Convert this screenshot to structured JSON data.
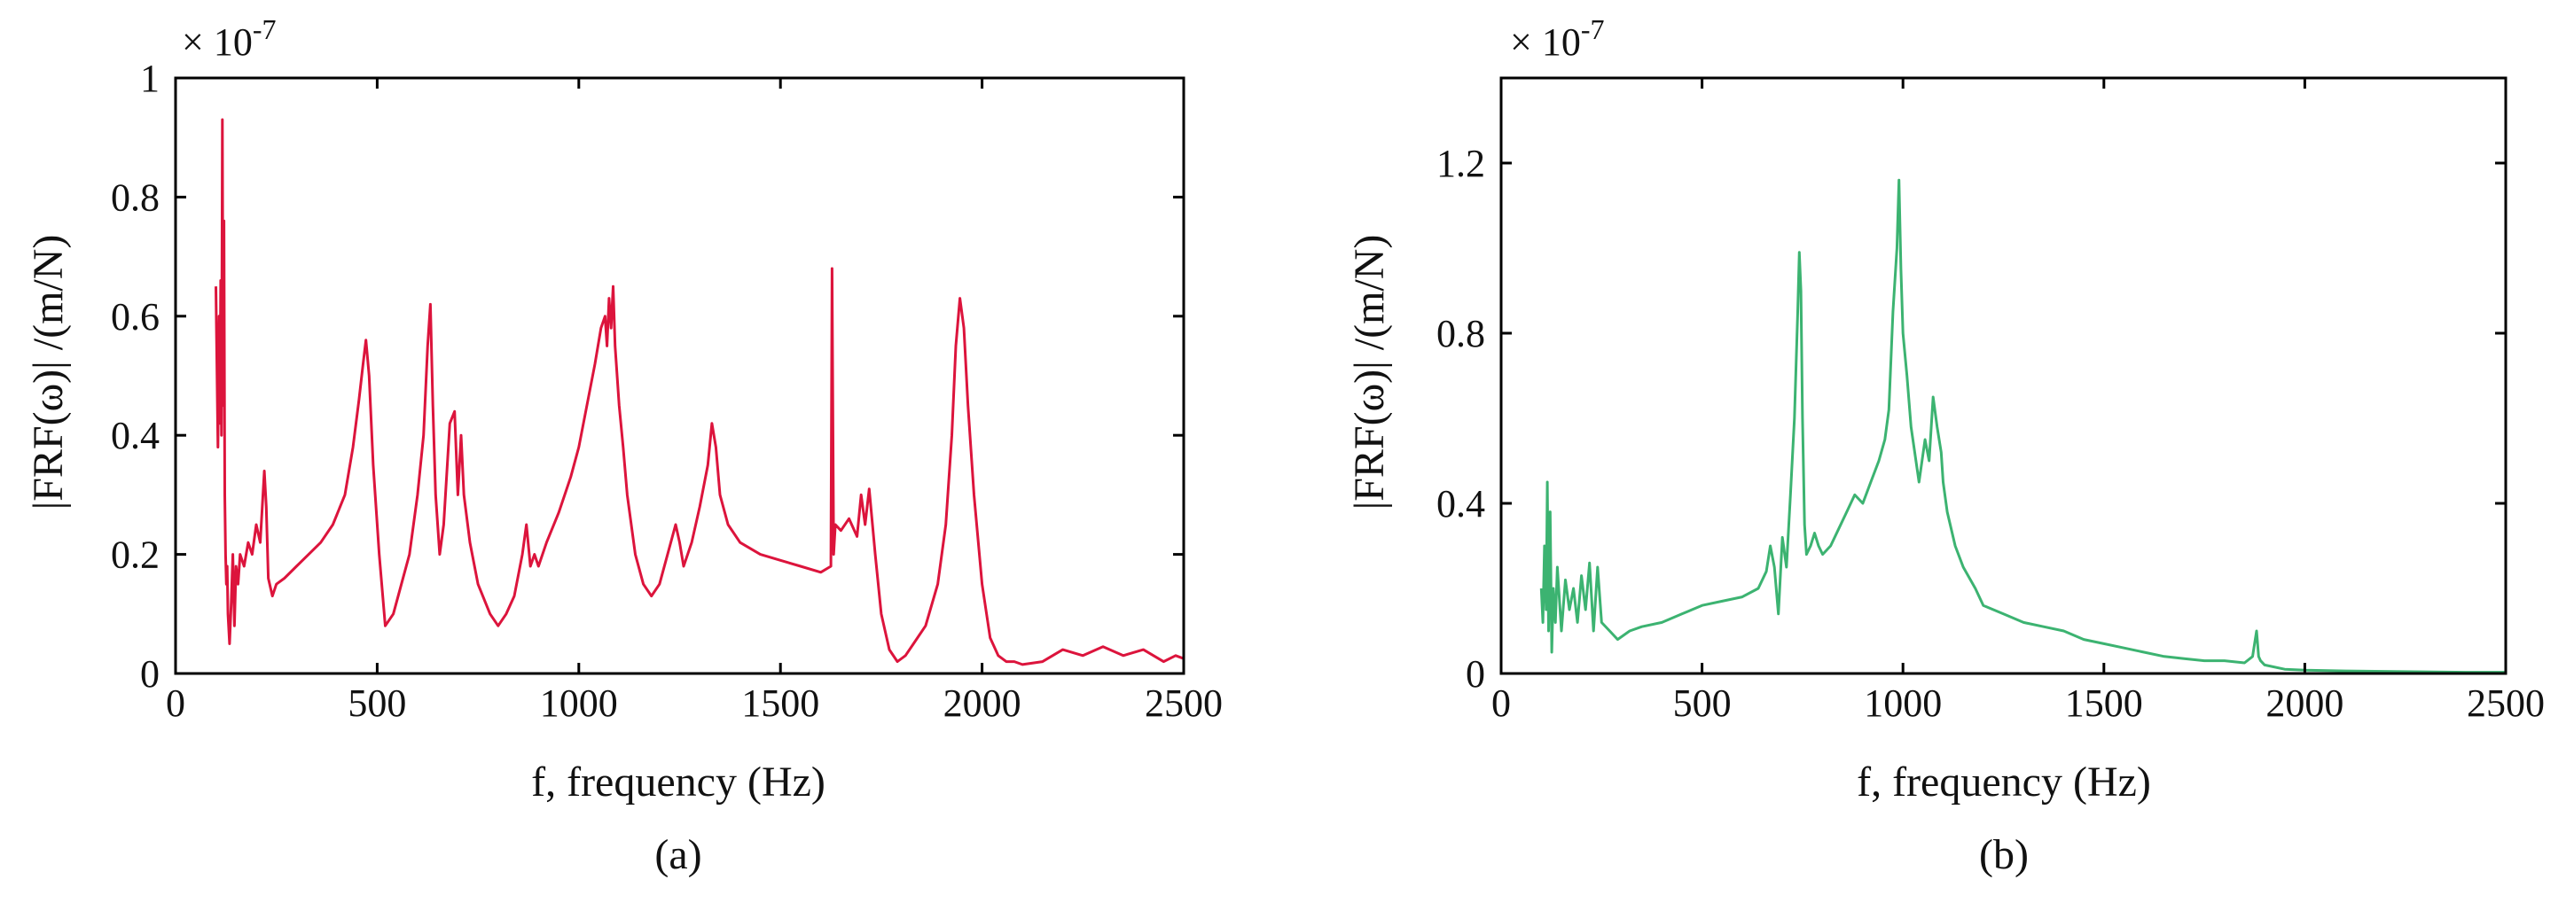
{
  "chart_data": [
    {
      "type": "line",
      "caption": "(a)",
      "xlabel": "f, frequency (Hz)",
      "ylabel": "|FRF(ω)| /(m/N)",
      "multiplier": "× 10",
      "multiplier_exp": "-7",
      "xlim": [
        0,
        2500
      ],
      "ylim": [
        0,
        1
      ],
      "xticks": [
        0,
        500,
        1000,
        1500,
        2000,
        2500
      ],
      "yticks": [
        0,
        0.2,
        0.4,
        0.6,
        0.8,
        1
      ],
      "ytick_labels": [
        "0",
        "0.2",
        "0.4",
        "0.6",
        "0.8",
        "1"
      ],
      "color": "#dc143c",
      "series": [
        {
          "x": [
            100,
            105,
            108,
            110,
            112,
            114,
            116,
            118,
            120,
            122,
            124,
            126,
            128,
            130,
            134,
            138,
            142,
            146,
            150,
            155,
            160,
            170,
            180,
            190,
            200,
            210,
            220,
            225,
            230,
            240,
            250,
            270,
            300,
            330,
            360,
            390,
            420,
            440,
            455,
            465,
            472,
            480,
            490,
            505,
            520,
            540,
            560,
            580,
            600,
            615,
            625,
            632,
            638,
            645,
            655,
            665,
            680,
            692,
            700,
            708,
            715,
            730,
            750,
            780,
            800,
            820,
            840,
            860,
            870,
            880,
            890,
            900,
            920,
            950,
            980,
            1000,
            1020,
            1040,
            1055,
            1065,
            1070,
            1075,
            1080,
            1085,
            1090,
            1100,
            1110,
            1120,
            1140,
            1160,
            1180,
            1200,
            1220,
            1240,
            1250,
            1260,
            1280,
            1300,
            1320,
            1330,
            1340,
            1350,
            1370,
            1400,
            1450,
            1500,
            1550,
            1600,
            1625,
            1628,
            1632,
            1636,
            1650,
            1670,
            1690,
            1700,
            1710,
            1720,
            1735,
            1750,
            1770,
            1790,
            1810,
            1830,
            1860,
            1890,
            1910,
            1925,
            1935,
            1945,
            1955,
            1965,
            1980,
            2000,
            2020,
            2040,
            2060,
            2080,
            2100,
            2150,
            2200,
            2250,
            2300,
            2350,
            2400,
            2450,
            2480,
            2500
          ],
          "values": [
            0.65,
            0.38,
            0.6,
            0.42,
            0.66,
            0.4,
            0.93,
            0.45,
            0.76,
            0.3,
            0.2,
            0.15,
            0.18,
            0.1,
            0.05,
            0.12,
            0.2,
            0.08,
            0.18,
            0.15,
            0.2,
            0.18,
            0.22,
            0.2,
            0.25,
            0.22,
            0.34,
            0.28,
            0.16,
            0.13,
            0.15,
            0.16,
            0.18,
            0.2,
            0.22,
            0.25,
            0.3,
            0.38,
            0.46,
            0.52,
            0.56,
            0.5,
            0.35,
            0.2,
            0.08,
            0.1,
            0.15,
            0.2,
            0.3,
            0.4,
            0.55,
            0.62,
            0.45,
            0.3,
            0.2,
            0.25,
            0.42,
            0.44,
            0.3,
            0.4,
            0.3,
            0.22,
            0.15,
            0.1,
            0.08,
            0.1,
            0.13,
            0.2,
            0.25,
            0.18,
            0.2,
            0.18,
            0.22,
            0.27,
            0.33,
            0.38,
            0.45,
            0.52,
            0.58,
            0.6,
            0.55,
            0.63,
            0.58,
            0.65,
            0.55,
            0.45,
            0.38,
            0.3,
            0.2,
            0.15,
            0.13,
            0.15,
            0.2,
            0.25,
            0.22,
            0.18,
            0.22,
            0.28,
            0.35,
            0.42,
            0.38,
            0.3,
            0.25,
            0.22,
            0.2,
            0.19,
            0.18,
            0.17,
            0.18,
            0.68,
            0.2,
            0.25,
            0.24,
            0.26,
            0.23,
            0.3,
            0.25,
            0.31,
            0.2,
            0.1,
            0.04,
            0.02,
            0.03,
            0.05,
            0.08,
            0.15,
            0.25,
            0.4,
            0.55,
            0.63,
            0.58,
            0.45,
            0.3,
            0.15,
            0.06,
            0.03,
            0.02,
            0.02,
            0.015,
            0.02,
            0.04,
            0.03,
            0.045,
            0.03,
            0.04,
            0.02,
            0.03,
            0.025
          ]
        }
      ]
    },
    {
      "type": "line",
      "caption": "(b)",
      "xlabel": "f, frequency (Hz)",
      "ylabel": "|FRF(ω)| /(m/N)",
      "multiplier": "× 10",
      "multiplier_exp": "-7",
      "xlim": [
        0,
        2500
      ],
      "ylim": [
        0,
        1.4
      ],
      "xticks": [
        0,
        500,
        1000,
        1500,
        2000,
        2500
      ],
      "yticks": [
        0,
        0.4,
        0.8,
        1.2
      ],
      "ytick_labels": [
        "0",
        "0.4",
        "0.8",
        "1.2"
      ],
      "color": "#3cb371",
      "series": [
        {
          "x": [
            100,
            104,
            108,
            112,
            115,
            118,
            122,
            126,
            130,
            135,
            140,
            150,
            160,
            170,
            180,
            190,
            200,
            210,
            220,
            230,
            240,
            250,
            270,
            290,
            320,
            350,
            400,
            450,
            500,
            550,
            600,
            640,
            660,
            670,
            680,
            690,
            700,
            710,
            720,
            730,
            738,
            742,
            746,
            750,
            755,
            760,
            770,
            780,
            790,
            800,
            820,
            840,
            860,
            880,
            900,
            920,
            940,
            955,
            965,
            975,
            985,
            990,
            995,
            1000,
            1010,
            1020,
            1040,
            1055,
            1065,
            1075,
            1085,
            1095,
            1100,
            1110,
            1130,
            1150,
            1180,
            1200,
            1250,
            1300,
            1350,
            1400,
            1450,
            1500,
            1550,
            1600,
            1650,
            1700,
            1750,
            1800,
            1850,
            1870,
            1880,
            1885,
            1890,
            1900,
            1950,
            2000,
            2100,
            2200,
            2300,
            2400,
            2500
          ],
          "values": [
            0.2,
            0.12,
            0.3,
            0.15,
            0.45,
            0.1,
            0.38,
            0.05,
            0.2,
            0.12,
            0.25,
            0.1,
            0.22,
            0.15,
            0.2,
            0.12,
            0.23,
            0.15,
            0.26,
            0.1,
            0.25,
            0.12,
            0.1,
            0.08,
            0.1,
            0.11,
            0.12,
            0.14,
            0.16,
            0.17,
            0.18,
            0.2,
            0.24,
            0.3,
            0.25,
            0.14,
            0.32,
            0.25,
            0.42,
            0.6,
            0.85,
            0.99,
            0.9,
            0.6,
            0.35,
            0.28,
            0.3,
            0.33,
            0.3,
            0.28,
            0.3,
            0.34,
            0.38,
            0.42,
            0.4,
            0.45,
            0.5,
            0.55,
            0.62,
            0.85,
            1.0,
            1.16,
            0.95,
            0.8,
            0.7,
            0.58,
            0.45,
            0.55,
            0.5,
            0.65,
            0.58,
            0.52,
            0.45,
            0.38,
            0.3,
            0.25,
            0.2,
            0.16,
            0.14,
            0.12,
            0.11,
            0.1,
            0.08,
            0.07,
            0.06,
            0.05,
            0.04,
            0.035,
            0.03,
            0.03,
            0.025,
            0.04,
            0.1,
            0.04,
            0.03,
            0.02,
            0.01,
            0.008,
            0.006,
            0.005,
            0.004,
            0.003,
            0.003
          ]
        }
      ]
    }
  ]
}
